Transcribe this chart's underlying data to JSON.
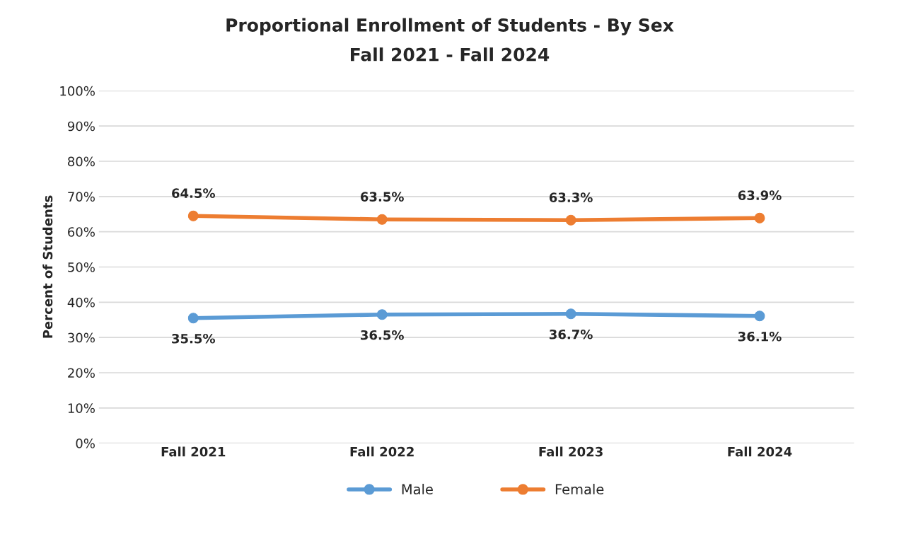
{
  "chart_data": {
    "type": "line",
    "title": "Proportional Enrollment of Students - By Sex",
    "subtitle": "Fall 2021 - Fall 2024",
    "ylabel": "Percent of Students",
    "categories": [
      "Fall 2021",
      "Fall 2022",
      "Fall 2023",
      "Fall 2024"
    ],
    "series": [
      {
        "name": "Male",
        "color": "#5b9bd5",
        "values": [
          35.5,
          36.5,
          36.7,
          36.1
        ],
        "value_labels": [
          "35.5%",
          "36.5%",
          "36.7%",
          "36.1%"
        ]
      },
      {
        "name": "Female",
        "color": "#ed7d31",
        "values": [
          64.5,
          63.5,
          63.3,
          63.9
        ],
        "value_labels": [
          "64.5%",
          "63.5%",
          "63.3%",
          "63.9%"
        ]
      }
    ],
    "ylim": [
      0,
      100
    ],
    "yticks": [
      {
        "value": 0,
        "label": "0%"
      },
      {
        "value": 10,
        "label": "10%"
      },
      {
        "value": 20,
        "label": "20%"
      },
      {
        "value": 30,
        "label": "30%"
      },
      {
        "value": 40,
        "label": "40%"
      },
      {
        "value": 50,
        "label": "50%"
      },
      {
        "value": 60,
        "label": "60%"
      },
      {
        "value": 70,
        "label": "70%"
      },
      {
        "value": 80,
        "label": "80%"
      },
      {
        "value": 90,
        "label": "90%"
      },
      {
        "value": 100,
        "label": "100%"
      }
    ],
    "grid": "y",
    "legend": "bottom",
    "marker": "circle",
    "line_style": "solid"
  }
}
